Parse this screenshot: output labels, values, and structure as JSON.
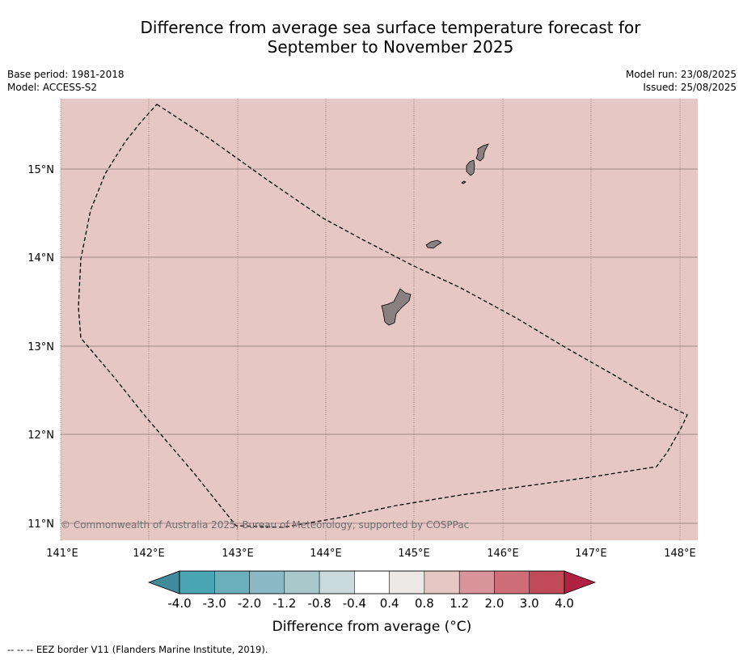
{
  "title_line1": "Difference from average sea surface temperature forecast for",
  "title_line2": "September to November 2025",
  "base_period": "Base period: 1981-2018",
  "model": "Model: ACCESS-S2",
  "model_run": "Model run: 23/08/2025",
  "issued": "Issued: 25/08/2025",
  "copyright": "© Commonwealth of Australia 2025, Bureau of Meteorology, supported by COSPPac",
  "footer": "-- -- -- EEZ border V11 (Flanders Marine Institute, 2019).",
  "map": {
    "background_color": "#e7c7c3",
    "lon_ticks": [
      "141°E",
      "142°E",
      "143°E",
      "144°E",
      "145°E",
      "146°E",
      "147°E",
      "148°E"
    ],
    "lat_ticks": [
      "15°N",
      "14°N",
      "13°N",
      "12°N",
      "11°N"
    ]
  },
  "colorbar": {
    "label": "Difference from average (°C)",
    "tick_labels": [
      "-4.0",
      "-3.0",
      "-2.0",
      "-1.2",
      "-0.8",
      "-0.4",
      "0.4",
      "0.8",
      "1.2",
      "2.0",
      "3.0",
      "4.0"
    ],
    "colors": [
      "#4aa5b4",
      "#6cb0bd",
      "#8ab8c4",
      "#a9c8cc",
      "#cbdadd",
      "#ffffff",
      "#ece8e6",
      "#e7c7c3",
      "#d9939a",
      "#cf6d78",
      "#c14a59"
    ],
    "under_color": "#3f8b99",
    "over_color": "#b22141"
  }
}
